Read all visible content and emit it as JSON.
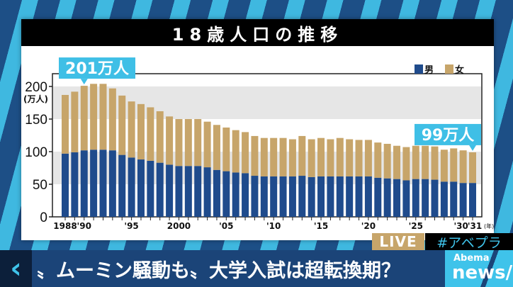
{
  "chart_data": {
    "type": "bar",
    "stacked": true,
    "title": "18歳人口の推移",
    "ylabel": "(万人)",
    "xlabel_unit": "(年)",
    "ylim": [
      0,
      200
    ],
    "yticks": [
      0,
      50,
      100,
      150,
      200
    ],
    "grid_bands": [
      [
        50,
        100
      ],
      [
        150,
        200
      ]
    ],
    "legend_position": "top-right",
    "x": [
      1988,
      1989,
      1990,
      1991,
      1992,
      1993,
      1994,
      1995,
      1996,
      1997,
      1998,
      1999,
      2000,
      2001,
      2002,
      2003,
      2004,
      2005,
      2006,
      2007,
      2008,
      2009,
      2010,
      2011,
      2012,
      2013,
      2014,
      2015,
      2016,
      2017,
      2018,
      2019,
      2020,
      2021,
      2022,
      2023,
      2024,
      2025,
      2026,
      2027,
      2028,
      2029,
      2030,
      2031
    ],
    "xtick_labels": [
      {
        "year": 1988,
        "label": "1988"
      },
      {
        "year": 1990,
        "label": "'90"
      },
      {
        "year": 1995,
        "label": "'95"
      },
      {
        "year": 2000,
        "label": "2000"
      },
      {
        "year": 2005,
        "label": "'05"
      },
      {
        "year": 2010,
        "label": "'10"
      },
      {
        "year": 2015,
        "label": "'15"
      },
      {
        "year": 2020,
        "label": "'20"
      },
      {
        "year": 2025,
        "label": "'25"
      },
      {
        "year": 2030,
        "label": "'30"
      },
      {
        "year": 2031,
        "label": "'31"
      }
    ],
    "series": [
      {
        "name": "男",
        "color": "#1f4b8c",
        "values": [
          97,
          99,
          102,
          103,
          103,
          102,
          95,
          91,
          88,
          86,
          83,
          80,
          78,
          78,
          78,
          76,
          72,
          70,
          68,
          67,
          63,
          62,
          62,
          62,
          62,
          63,
          61,
          62,
          62,
          62,
          62,
          62,
          62,
          60,
          59,
          58,
          56,
          58,
          58,
          57,
          54,
          54,
          52,
          52
        ]
      },
      {
        "name": "女",
        "color": "#c7a56a",
        "values": [
          90,
          93,
          99,
          101,
          101,
          95,
          91,
          86,
          85,
          82,
          79,
          74,
          72,
          72,
          72,
          70,
          69,
          67,
          65,
          63,
          61,
          59,
          59,
          59,
          57,
          61,
          58,
          59,
          57,
          59,
          57,
          56,
          56,
          54,
          53,
          51,
          51,
          51,
          51,
          51,
          49,
          51,
          50,
          47
        ]
      }
    ],
    "annotations": [
      {
        "year": 1990,
        "text": "201万人"
      },
      {
        "year": 2031,
        "text": "99万人"
      }
    ]
  },
  "overlay": {
    "live": "LIVE",
    "hashtag": "#アベプラ",
    "headline": "〟ムーミン騒動も〟大学入試は超転換期？",
    "logo_top": "Abema",
    "logo_bottom": "news/"
  }
}
